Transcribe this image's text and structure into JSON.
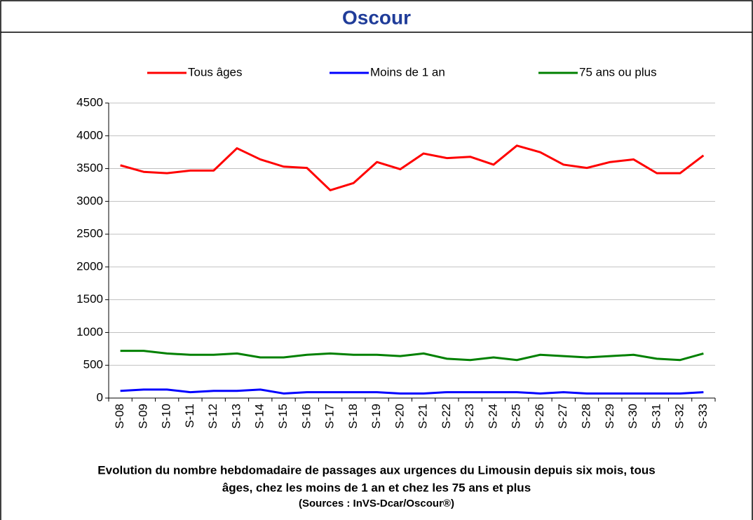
{
  "chart_data": {
    "type": "line",
    "title": "Oscour",
    "caption": [
      "Evolution du nombre hebdomadaire de passages aux urgences du Limousin depuis six mois, tous",
      "âges, chez les moins de 1 an et chez les 75 ans et plus"
    ],
    "source": "(Sources : InVS-Dcar/Oscour®)",
    "categories": [
      "S-08",
      "S-09",
      "S-10",
      "S-11",
      "S-12",
      "S-13",
      "S-14",
      "S-15",
      "S-16",
      "S-17",
      "S-18",
      "S-19",
      "S-20",
      "S-21",
      "S-22",
      "S-23",
      "S-24",
      "S-25",
      "S-26",
      "S-27",
      "S-28",
      "S-29",
      "S-30",
      "S-31",
      "S-32",
      "S-33"
    ],
    "series": [
      {
        "name": "Tous âges",
        "color": "#ff0000",
        "values": [
          3550,
          3450,
          3430,
          3470,
          3470,
          3810,
          3640,
          3530,
          3510,
          3170,
          3280,
          3600,
          3490,
          3730,
          3660,
          3680,
          3560,
          3850,
          3750,
          3560,
          3510,
          3600,
          3640,
          3430,
          3430,
          3700
        ]
      },
      {
        "name": "Moins de 1 an",
        "color": "#0000ff",
        "values": [
          110,
          130,
          130,
          90,
          110,
          110,
          130,
          70,
          90,
          90,
          90,
          90,
          70,
          70,
          90,
          90,
          90,
          90,
          70,
          90,
          70,
          70,
          70,
          70,
          70,
          90
        ]
      },
      {
        "name": "75 ans ou plus",
        "color": "#008000",
        "values": [
          720,
          720,
          680,
          660,
          660,
          680,
          620,
          620,
          660,
          680,
          660,
          660,
          640,
          680,
          600,
          580,
          620,
          580,
          660,
          640,
          620,
          640,
          660,
          600,
          580,
          680
        ]
      }
    ],
    "ylim": [
      0,
      4500
    ],
    "yticks": [
      0,
      500,
      1000,
      1500,
      2000,
      2500,
      3000,
      3500,
      4000,
      4500
    ],
    "grid": true,
    "legend": "top"
  }
}
